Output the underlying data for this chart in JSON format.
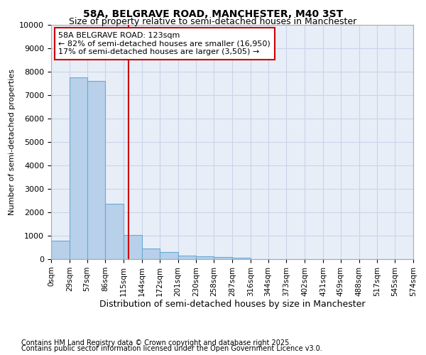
{
  "title": "58A, BELGRAVE ROAD, MANCHESTER, M40 3ST",
  "subtitle": "Size of property relative to semi-detached houses in Manchester",
  "xlabel": "Distribution of semi-detached houses by size in Manchester",
  "ylabel": "Number of semi-detached properties",
  "footnote1": "Contains HM Land Registry data © Crown copyright and database right 2025.",
  "footnote2": "Contains public sector information licensed under the Open Government Licence v3.0.",
  "annotation_title": "58A BELGRAVE ROAD: 123sqm",
  "annotation_line1": "← 82% of semi-detached houses are smaller (16,950)",
  "annotation_line2": "17% of semi-detached houses are larger (3,505) →",
  "bin_edges": [
    0,
    29,
    57,
    86,
    115,
    144,
    172,
    201,
    230,
    258,
    287,
    316,
    344,
    373,
    402,
    431,
    459,
    488,
    517,
    545,
    574
  ],
  "bar_heights": [
    800,
    7750,
    7600,
    2350,
    1020,
    450,
    290,
    160,
    110,
    80,
    50,
    0,
    0,
    0,
    0,
    0,
    0,
    0,
    0,
    0
  ],
  "bar_color": "#b8d0ea",
  "bar_edge_color": "#6aaad4",
  "vline_color": "#cc0000",
  "vline_x": 123,
  "annotation_box_facecolor": "#ffffff",
  "annotation_box_edgecolor": "#cc0000",
  "plot_bg_color": "#e8eef8",
  "fig_bg_color": "#ffffff",
  "grid_color": "#c8d4e8",
  "ylim": [
    0,
    10000
  ],
  "yticks": [
    0,
    1000,
    2000,
    3000,
    4000,
    5000,
    6000,
    7000,
    8000,
    9000,
    10000
  ],
  "tick_labels": [
    "0sqm",
    "29sqm",
    "57sqm",
    "86sqm",
    "115sqm",
    "144sqm",
    "172sqm",
    "201sqm",
    "230sqm",
    "258sqm",
    "287sqm",
    "316sqm",
    "344sqm",
    "373sqm",
    "402sqm",
    "431sqm",
    "459sqm",
    "488sqm",
    "517sqm",
    "545sqm",
    "574sqm"
  ],
  "title_fontsize": 10,
  "subtitle_fontsize": 9,
  "xlabel_fontsize": 9,
  "ylabel_fontsize": 8,
  "xtick_fontsize": 7.5,
  "ytick_fontsize": 8,
  "annotation_fontsize": 8,
  "footnote_fontsize": 7
}
